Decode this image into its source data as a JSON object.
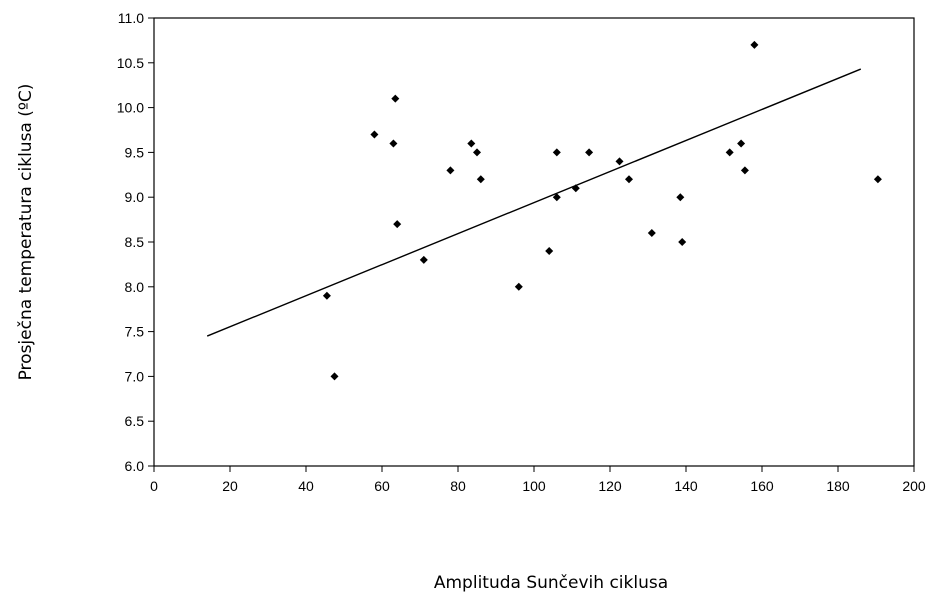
{
  "chart_data": {
    "type": "scatter",
    "title": "",
    "xlabel": "Amplituda Sunčevih ciklusa",
    "ylabel": "Prosječna temperatura ciklusa (ºC)",
    "xlim": [
      0,
      200
    ],
    "ylim": [
      6.0,
      11.0
    ],
    "xticks": [
      0,
      20,
      40,
      60,
      80,
      100,
      120,
      140,
      160,
      180,
      200
    ],
    "yticks": [
      "6.0",
      "6.5",
      "7.0",
      "7.5",
      "8.0",
      "8.5",
      "9.0",
      "9.5",
      "10.0",
      "10.5",
      "11.0"
    ],
    "grid": false,
    "legend": "none",
    "marker": "diamond",
    "points": [
      {
        "x": 45.5,
        "y": 7.9
      },
      {
        "x": 47.5,
        "y": 7.0
      },
      {
        "x": 58.0,
        "y": 9.7
      },
      {
        "x": 63.0,
        "y": 9.6
      },
      {
        "x": 63.5,
        "y": 10.1
      },
      {
        "x": 64.0,
        "y": 8.7
      },
      {
        "x": 71.0,
        "y": 8.3
      },
      {
        "x": 78.0,
        "y": 9.3
      },
      {
        "x": 83.5,
        "y": 9.6
      },
      {
        "x": 85.0,
        "y": 9.5
      },
      {
        "x": 86.0,
        "y": 9.2
      },
      {
        "x": 96.0,
        "y": 8.0
      },
      {
        "x": 104.0,
        "y": 8.4
      },
      {
        "x": 106.0,
        "y": 9.0
      },
      {
        "x": 106.0,
        "y": 9.5
      },
      {
        "x": 111.0,
        "y": 9.1
      },
      {
        "x": 114.5,
        "y": 9.5
      },
      {
        "x": 122.5,
        "y": 9.4
      },
      {
        "x": 125.0,
        "y": 9.2
      },
      {
        "x": 131.0,
        "y": 8.6
      },
      {
        "x": 138.5,
        "y": 9.0
      },
      {
        "x": 139.0,
        "y": 8.5
      },
      {
        "x": 151.5,
        "y": 9.5
      },
      {
        "x": 154.5,
        "y": 9.6
      },
      {
        "x": 155.5,
        "y": 9.3
      },
      {
        "x": 158.0,
        "y": 10.7
      },
      {
        "x": 190.5,
        "y": 9.2
      }
    ],
    "trendline": {
      "x": [
        14,
        186
      ],
      "y": [
        7.45,
        10.43
      ]
    },
    "colors": {
      "marker": "#000000",
      "trendline": "#000000",
      "axes": "#000000"
    }
  }
}
